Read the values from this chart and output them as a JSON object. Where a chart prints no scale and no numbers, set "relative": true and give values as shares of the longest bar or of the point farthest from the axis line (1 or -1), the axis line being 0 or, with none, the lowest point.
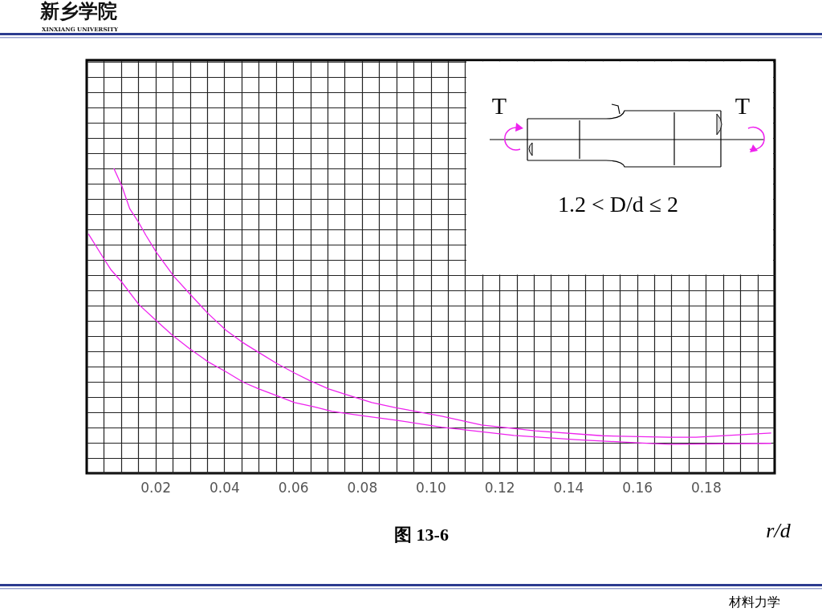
{
  "chart_data": {
    "type": "line",
    "relative": true,
    "xlabel": "r/d",
    "xlim": [
      0,
      0.2
    ],
    "xticks": [
      {
        "value": 0.005,
        "label": null
      },
      {
        "value": 0.01,
        "label": null
      },
      {
        "value": 0.015,
        "label": null
      },
      {
        "value": 0.02,
        "label": "0.02"
      },
      {
        "value": 0.025,
        "label": null
      },
      {
        "value": 0.03,
        "label": null
      },
      {
        "value": 0.035,
        "label": null
      },
      {
        "value": 0.04,
        "label": "0.04"
      },
      {
        "value": 0.045,
        "label": null
      },
      {
        "value": 0.05,
        "label": null
      },
      {
        "value": 0.055,
        "label": null
      },
      {
        "value": 0.06,
        "label": "0.06"
      },
      {
        "value": 0.065,
        "label": null
      },
      {
        "value": 0.07,
        "label": null
      },
      {
        "value": 0.075,
        "label": null
      },
      {
        "value": 0.08,
        "label": "0.08"
      },
      {
        "value": 0.085,
        "label": null
      },
      {
        "value": 0.09,
        "label": null
      },
      {
        "value": 0.095,
        "label": null
      },
      {
        "value": 0.1,
        "label": "0.10"
      },
      {
        "value": 0.105,
        "label": null
      },
      {
        "value": 0.11,
        "label": null
      },
      {
        "value": 0.115,
        "label": null
      },
      {
        "value": 0.12,
        "label": "0.12"
      },
      {
        "value": 0.125,
        "label": null
      },
      {
        "value": 0.13,
        "label": null
      },
      {
        "value": 0.135,
        "label": null
      },
      {
        "value": 0.14,
        "label": "0.14"
      },
      {
        "value": 0.145,
        "label": null
      },
      {
        "value": 0.15,
        "label": null
      },
      {
        "value": 0.155,
        "label": null
      },
      {
        "value": 0.16,
        "label": "0.16"
      },
      {
        "value": 0.165,
        "label": null
      },
      {
        "value": 0.17,
        "label": null
      },
      {
        "value": 0.175,
        "label": null
      },
      {
        "value": 0.18,
        "label": "0.18"
      },
      {
        "value": 0.185,
        "label": null
      },
      {
        "value": 0.19,
        "label": null
      },
      {
        "value": 0.195,
        "label": null
      }
    ],
    "grid": true,
    "series": [
      {
        "color": "#ee22ee",
        "x": [
          0.0079,
          0.0102,
          0.0125,
          0.0151,
          0.0172,
          0.0203,
          0.0254,
          0.03,
          0.0351,
          0.0405,
          0.0452,
          0.0502,
          0.0553,
          0.0604,
          0.065,
          0.0705,
          0.0752,
          0.0829,
          0.0899,
          0.1032,
          0.1148,
          0.1304,
          0.1498,
          0.1692,
          0.1771,
          0.199
        ],
        "values": [
          1.0,
          0.943,
          0.868,
          0.823,
          0.781,
          0.724,
          0.645,
          0.588,
          0.526,
          0.469,
          0.43,
          0.395,
          0.36,
          0.329,
          0.303,
          0.276,
          0.259,
          0.232,
          0.215,
          0.187,
          0.158,
          0.139,
          0.123,
          0.118,
          0.118,
          0.132
        ]
      },
      {
        "color": "#ee22ee",
        "x": [
          0.0005,
          0.0051,
          0.0071,
          0.0102,
          0.0152,
          0.0203,
          0.025,
          0.03,
          0.0355,
          0.0405,
          0.0456,
          0.0502,
          0.0553,
          0.0604,
          0.0658,
          0.0713,
          0.0798,
          0.0899,
          0.1032,
          0.1242,
          0.1421,
          0.1615,
          0.1693,
          0.199
        ],
        "values": [
          0.785,
          0.702,
          0.667,
          0.627,
          0.553,
          0.5,
          0.452,
          0.408,
          0.364,
          0.333,
          0.298,
          0.276,
          0.254,
          0.232,
          0.219,
          0.203,
          0.189,
          0.174,
          0.151,
          0.124,
          0.11,
          0.099,
          0.095,
          0.098
        ]
      }
    ],
    "annotations": [
      "新乡学院",
      "XINXIANG UNIVERSITY",
      "T",
      "T",
      "1.2 < D/d ≤ 2",
      "图 13-6",
      "材料力学"
    ]
  }
}
